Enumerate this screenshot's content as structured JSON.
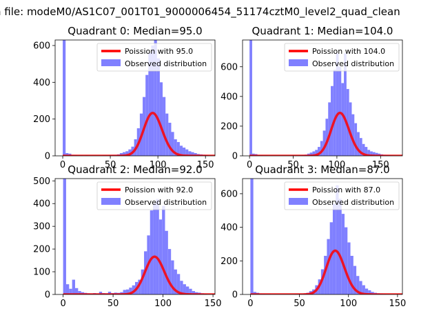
{
  "figure": {
    "suptitle": "n file: modeM0/AS1C07_001T01_9000006454_51174cztM0_level2_quad_clean"
  },
  "chart_data": [
    {
      "type": "histogram",
      "title": "Quadrant 0: Median=95.0",
      "xlabel": "",
      "ylabel": "",
      "xlim": [
        -8,
        160
      ],
      "ylim": [
        0,
        630
      ],
      "xticks": [
        0,
        50,
        100,
        150
      ],
      "yticks": [
        0,
        200,
        400,
        600
      ],
      "legend_position": "upper right",
      "bar_color": "#8080ff",
      "curve_color": "#ff0000",
      "curve_label": "Poission with 95.0",
      "hist_label": "Observed distribution",
      "poisson_lambda": 95.0,
      "curve_scale": 5700,
      "bin_width": 3,
      "bins": [
        [
          0,
          630
        ],
        [
          3,
          15
        ],
        [
          6,
          12
        ],
        [
          9,
          5
        ],
        [
          12,
          4
        ],
        [
          15,
          3
        ],
        [
          18,
          3
        ],
        [
          21,
          2
        ],
        [
          24,
          3
        ],
        [
          27,
          2
        ],
        [
          30,
          2
        ],
        [
          33,
          2
        ],
        [
          36,
          2
        ],
        [
          39,
          2
        ],
        [
          42,
          3
        ],
        [
          45,
          3
        ],
        [
          48,
          3
        ],
        [
          51,
          5
        ],
        [
          54,
          5
        ],
        [
          57,
          8
        ],
        [
          60,
          15
        ],
        [
          63,
          20
        ],
        [
          66,
          25
        ],
        [
          69,
          35
        ],
        [
          72,
          50
        ],
        [
          75,
          90
        ],
        [
          78,
          150
        ],
        [
          81,
          230
        ],
        [
          84,
          320
        ],
        [
          87,
          440
        ],
        [
          90,
          560
        ],
        [
          93,
          600
        ],
        [
          96,
          640
        ],
        [
          99,
          530
        ],
        [
          102,
          400
        ],
        [
          105,
          320
        ],
        [
          108,
          230
        ],
        [
          111,
          180
        ],
        [
          114,
          130
        ],
        [
          117,
          90
        ],
        [
          120,
          75
        ],
        [
          123,
          55
        ],
        [
          126,
          45
        ],
        [
          129,
          35
        ],
        [
          132,
          25
        ],
        [
          135,
          20
        ],
        [
          138,
          15
        ],
        [
          141,
          10
        ],
        [
          144,
          8
        ],
        [
          147,
          6
        ],
        [
          150,
          4
        ]
      ]
    },
    {
      "type": "histogram",
      "title": "Quadrant 1: Median=104.0",
      "xlabel": "",
      "ylabel": "",
      "xlim": [
        -8,
        175
      ],
      "ylim": [
        0,
        780
      ],
      "xticks": [
        0,
        50,
        100,
        150
      ],
      "yticks": [
        0,
        200,
        400,
        600
      ],
      "legend_position": "upper right",
      "bar_color": "#8080ff",
      "curve_color": "#ff0000",
      "curve_label": "Poission with 104.0",
      "hist_label": "Observed distribution",
      "poisson_lambda": 104.0,
      "curve_scale": 7400,
      "bin_width": 3,
      "bins": [
        [
          0,
          780
        ],
        [
          3,
          15
        ],
        [
          6,
          12
        ],
        [
          9,
          5
        ],
        [
          12,
          4
        ],
        [
          15,
          3
        ],
        [
          18,
          3
        ],
        [
          21,
          2
        ],
        [
          24,
          2
        ],
        [
          27,
          2
        ],
        [
          30,
          2
        ],
        [
          33,
          2
        ],
        [
          36,
          2
        ],
        [
          39,
          2
        ],
        [
          42,
          2
        ],
        [
          45,
          2
        ],
        [
          48,
          3
        ],
        [
          51,
          3
        ],
        [
          54,
          3
        ],
        [
          57,
          4
        ],
        [
          60,
          5
        ],
        [
          63,
          8
        ],
        [
          66,
          15
        ],
        [
          69,
          22
        ],
        [
          72,
          30
        ],
        [
          75,
          40
        ],
        [
          78,
          60
        ],
        [
          81,
          100
        ],
        [
          84,
          170
        ],
        [
          87,
          250
        ],
        [
          90,
          360
        ],
        [
          93,
          470
        ],
        [
          96,
          580
        ],
        [
          99,
          690
        ],
        [
          102,
          600
        ],
        [
          105,
          490
        ],
        [
          108,
          690
        ],
        [
          111,
          450
        ],
        [
          114,
          360
        ],
        [
          117,
          280
        ],
        [
          120,
          220
        ],
        [
          123,
          160
        ],
        [
          126,
          120
        ],
        [
          129,
          80
        ],
        [
          132,
          60
        ],
        [
          135,
          40
        ],
        [
          138,
          30
        ],
        [
          141,
          25
        ],
        [
          144,
          20
        ],
        [
          147,
          15
        ],
        [
          150,
          10
        ],
        [
          153,
          7
        ],
        [
          156,
          5
        ],
        [
          159,
          4
        ],
        [
          162,
          3
        ],
        [
          165,
          2
        ]
      ]
    },
    {
      "type": "histogram",
      "title": "Quadrant 2: Median=92.0",
      "xlabel": "",
      "ylabel": "",
      "xlim": [
        -8,
        152
      ],
      "ylim": [
        0,
        510
      ],
      "xticks": [
        0,
        50,
        100,
        150
      ],
      "yticks": [
        0,
        100,
        200,
        300,
        400,
        500
      ],
      "legend_position": "upper right",
      "bar_color": "#8080ff",
      "curve_color": "#ff0000",
      "curve_label": "Poission with 92.0",
      "hist_label": "Observed distribution",
      "poisson_lambda": 92.0,
      "curve_scale": 4000,
      "bin_width": 3,
      "bins": [
        [
          0,
          510
        ],
        [
          3,
          45
        ],
        [
          6,
          25
        ],
        [
          9,
          65
        ],
        [
          12,
          28
        ],
        [
          15,
          15
        ],
        [
          18,
          10
        ],
        [
          21,
          7
        ],
        [
          24,
          5
        ],
        [
          27,
          4
        ],
        [
          30,
          6
        ],
        [
          33,
          4
        ],
        [
          36,
          12
        ],
        [
          39,
          6
        ],
        [
          42,
          5
        ],
        [
          45,
          12
        ],
        [
          48,
          6
        ],
        [
          51,
          8
        ],
        [
          54,
          7
        ],
        [
          57,
          10
        ],
        [
          60,
          20
        ],
        [
          63,
          22
        ],
        [
          66,
          30
        ],
        [
          69,
          40
        ],
        [
          72,
          55
        ],
        [
          75,
          65
        ],
        [
          78,
          110
        ],
        [
          81,
          190
        ],
        [
          84,
          260
        ],
        [
          87,
          370
        ],
        [
          90,
          400
        ],
        [
          93,
          420
        ],
        [
          96,
          330
        ],
        [
          99,
          390
        ],
        [
          102,
          280
        ],
        [
          105,
          200
        ],
        [
          108,
          150
        ],
        [
          111,
          110
        ],
        [
          114,
          90
        ],
        [
          117,
          60
        ],
        [
          120,
          45
        ],
        [
          123,
          35
        ],
        [
          126,
          25
        ],
        [
          129,
          15
        ],
        [
          132,
          10
        ],
        [
          135,
          8
        ],
        [
          138,
          5
        ],
        [
          141,
          3
        ]
      ]
    },
    {
      "type": "histogram",
      "title": "Quadrant 3: Median=87.0",
      "xlabel": "",
      "ylabel": "",
      "xlim": [
        -8,
        155
      ],
      "ylim": [
        0,
        690
      ],
      "xticks": [
        0,
        50,
        100,
        150
      ],
      "yticks": [
        0,
        200,
        400,
        600
      ],
      "legend_position": "upper right",
      "bar_color": "#8080ff",
      "curve_color": "#ff0000",
      "curve_label": "Poission with 87.0",
      "hist_label": "Observed distribution",
      "poisson_lambda": 87.0,
      "curve_scale": 6100,
      "bin_width": 3,
      "bins": [
        [
          0,
          690
        ],
        [
          3,
          15
        ],
        [
          6,
          10
        ],
        [
          9,
          5
        ],
        [
          12,
          4
        ],
        [
          15,
          3
        ],
        [
          18,
          3
        ],
        [
          21,
          2
        ],
        [
          24,
          2
        ],
        [
          27,
          2
        ],
        [
          30,
          2
        ],
        [
          33,
          2
        ],
        [
          36,
          2
        ],
        [
          39,
          2
        ],
        [
          42,
          2
        ],
        [
          45,
          3
        ],
        [
          48,
          3
        ],
        [
          51,
          4
        ],
        [
          54,
          6
        ],
        [
          57,
          10
        ],
        [
          60,
          20
        ],
        [
          63,
          30
        ],
        [
          66,
          55
        ],
        [
          69,
          90
        ],
        [
          72,
          150
        ],
        [
          75,
          230
        ],
        [
          78,
          330
        ],
        [
          81,
          430
        ],
        [
          84,
          540
        ],
        [
          87,
          650
        ],
        [
          90,
          570
        ],
        [
          93,
          480
        ],
        [
          96,
          400
        ],
        [
          99,
          310
        ],
        [
          102,
          230
        ],
        [
          105,
          170
        ],
        [
          108,
          110
        ],
        [
          111,
          80
        ],
        [
          114,
          55
        ],
        [
          117,
          35
        ],
        [
          120,
          25
        ],
        [
          123,
          15
        ],
        [
          126,
          10
        ],
        [
          129,
          7
        ],
        [
          132,
          5
        ],
        [
          135,
          3
        ],
        [
          138,
          2
        ]
      ]
    }
  ]
}
